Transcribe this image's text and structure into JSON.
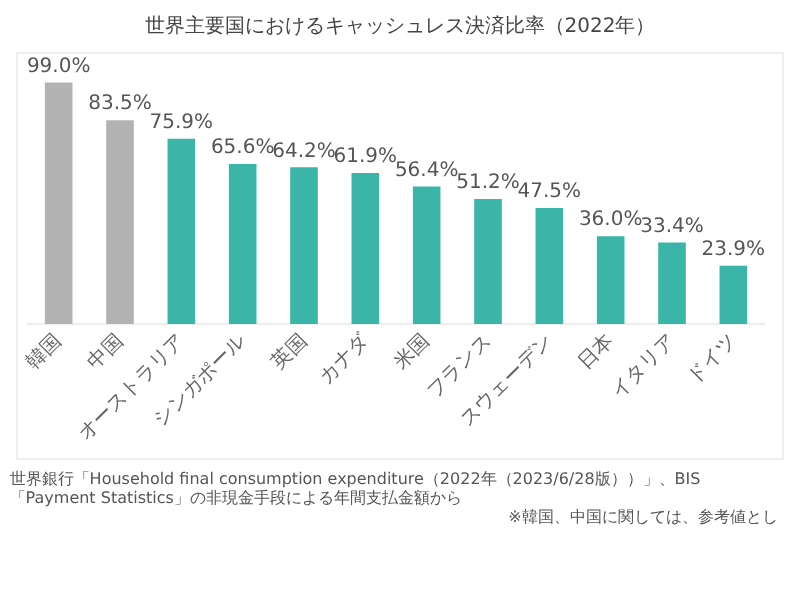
{
  "chart_data": {
    "type": "bar",
    "title": "世界主要国におけるキャッシュレス決済比率（2022年）",
    "categories": [
      "韓国",
      "中国",
      "オーストラリア",
      "シンガポール",
      "英国",
      "カナダ",
      "米国",
      "フランス",
      "スウェーデン",
      "日本",
      "イタリア",
      "ドイツ"
    ],
    "values": [
      99.0,
      83.5,
      75.9,
      65.6,
      64.2,
      61.9,
      56.4,
      51.2,
      47.5,
      36.0,
      33.4,
      23.9
    ],
    "colors": [
      "#b3b3b3",
      "#b3b3b3",
      "#3bb5a8",
      "#3bb5a8",
      "#3bb5a8",
      "#3bb5a8",
      "#3bb5a8",
      "#3bb5a8",
      "#3bb5a8",
      "#3bb5a8",
      "#3bb5a8",
      "#3bb5a8"
    ],
    "value_labels": [
      "99.0%",
      "83.5%",
      "75.9%",
      "65.6%",
      "64.2%",
      "61.9%",
      "56.4%",
      "51.2%",
      "47.5%",
      "36.0%",
      "33.4%",
      "23.9%"
    ],
    "annotations": [
      "世界銀行「Household final consumption expenditure（2022年（2023/6/28版））」、BIS「Payment Statistics」の非現金手段による年間支払金額から",
      "※韓国、中国に関しては、参考値とし"
    ],
    "grid": false,
    "legend": false
  }
}
